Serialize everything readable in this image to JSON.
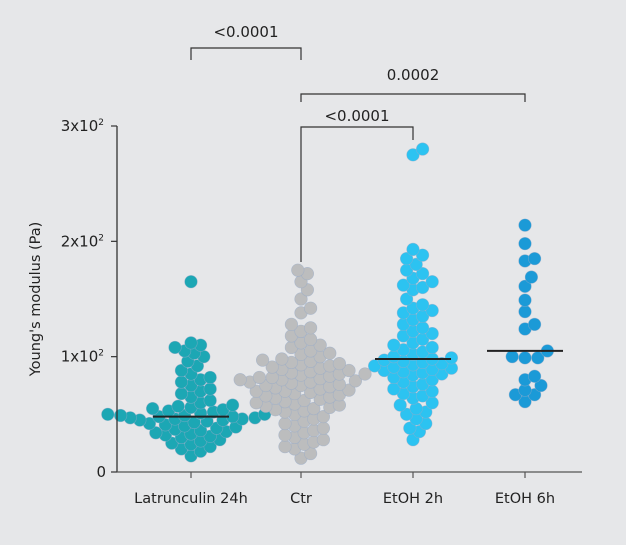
{
  "chart_data": {
    "type": "scatter",
    "subtype": "beeswarm with median lines",
    "title": "",
    "xlabel": "",
    "ylabel": "Young's modulus (Pa)",
    "ylim": [
      0,
      300
    ],
    "yticks": [
      {
        "value": 0,
        "base": "0",
        "exp": ""
      },
      {
        "value": 100,
        "base": "1x10",
        "exp": "2"
      },
      {
        "value": 200,
        "base": "2x10",
        "exp": "2"
      },
      {
        "value": 300,
        "base": "3x10",
        "exp": "2"
      }
    ],
    "grid": false,
    "categories": [
      "Latrunculin 24h",
      "Ctr",
      "EtOH 2h",
      "EtOH 6h"
    ],
    "series": [
      {
        "category": "Latrunculin 24h",
        "color": "#1ca7b4",
        "median": 48,
        "values": [
          165,
          112,
          110,
          108,
          105,
          103,
          100,
          96,
          92,
          88,
          85,
          82,
          80,
          78,
          75,
          72,
          70,
          68,
          65,
          62,
          60,
          58,
          57,
          56,
          55,
          54,
          53,
          52,
          51,
          50,
          50,
          49,
          49,
          48,
          48,
          47,
          47,
          46,
          46,
          45,
          45,
          44,
          43,
          42,
          41,
          40,
          39,
          38,
          37,
          36,
          35,
          34,
          33,
          32,
          31,
          30,
          28,
          27,
          25,
          24,
          22,
          20,
          18,
          14
        ]
      },
      {
        "category": "Ctr",
        "color": "#bcbdbe",
        "median": null,
        "values": [
          175,
          172,
          165,
          158,
          150,
          142,
          138,
          128,
          125,
          122,
          118,
          115,
          112,
          110,
          108,
          105,
          103,
          102,
          100,
          98,
          97,
          96,
          95,
          94,
          93,
          92,
          91,
          90,
          89,
          88,
          87,
          86,
          85,
          85,
          84,
          83,
          82,
          82,
          81,
          80,
          80,
          79,
          78,
          78,
          77,
          76,
          75,
          75,
          74,
          73,
          72,
          71,
          70,
          70,
          69,
          68,
          67,
          66,
          65,
          64,
          63,
          62,
          61,
          60,
          59,
          58,
          57,
          56,
          55,
          54,
          53,
          52,
          50,
          48,
          46,
          44,
          42,
          40,
          38,
          36,
          34,
          32,
          30,
          28,
          26,
          24,
          22,
          20,
          16,
          12
        ]
      },
      {
        "category": "EtOH 2h",
        "color": "#2cc3f1",
        "median": 98,
        "values": [
          280,
          275,
          193,
          188,
          185,
          180,
          175,
          172,
          168,
          165,
          162,
          160,
          158,
          150,
          145,
          142,
          140,
          138,
          135,
          132,
          128,
          125,
          122,
          120,
          118,
          115,
          112,
          110,
          108,
          106,
          104,
          102,
          100,
          99,
          98,
          97,
          96,
          95,
          94,
          93,
          92,
          91,
          90,
          89,
          88,
          87,
          86,
          85,
          84,
          82,
          80,
          78,
          76,
          74,
          72,
          70,
          68,
          66,
          64,
          60,
          58,
          55,
          52,
          50,
          46,
          42,
          38,
          35,
          28
        ]
      },
      {
        "category": "EtOH 6h",
        "color": "#1b9ad7",
        "median": 105,
        "values": [
          214,
          198,
          185,
          183,
          169,
          161,
          149,
          139,
          128,
          124,
          105,
          99,
          99,
          100,
          83,
          80,
          75,
          71,
          67,
          67,
          61
        ]
      }
    ],
    "annotations": [
      {
        "from": "Latrunculin 24h",
        "to": "Ctr",
        "label": "<0.0001"
      },
      {
        "from": "Ctr",
        "to": "EtOH 6h",
        "label": "0.0002"
      },
      {
        "from": "Ctr",
        "to": "EtOH 2h",
        "label": "<0.0001"
      }
    ]
  }
}
